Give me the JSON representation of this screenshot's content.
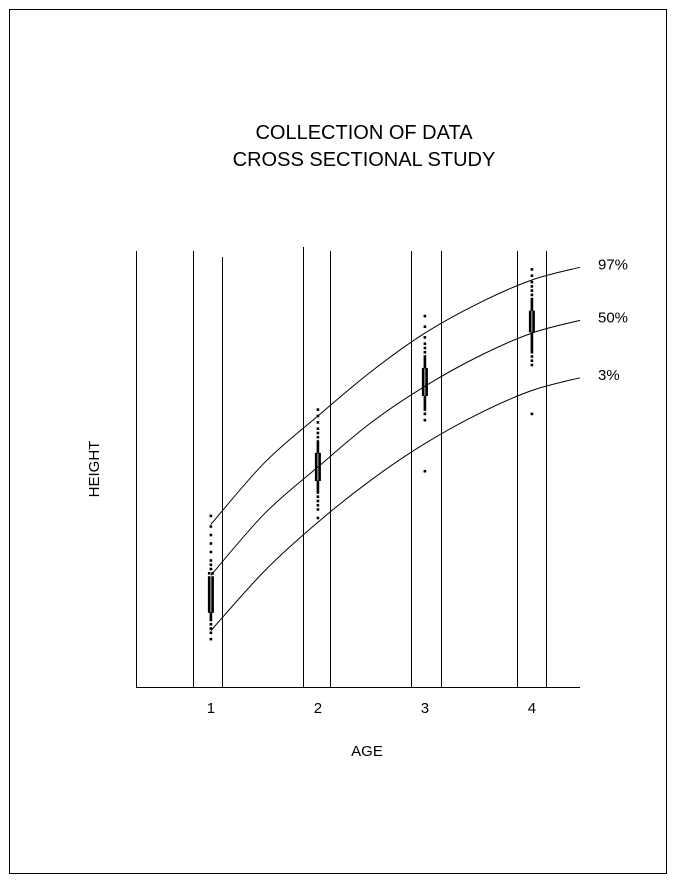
{
  "chart_data": {
    "type": "scatter",
    "title_lines": [
      "COLLECTION OF DATA",
      "CROSS SECTIONAL STUDY"
    ],
    "xlabel": "AGE",
    "ylabel": "HEIGHT",
    "categories": [
      "1",
      "2",
      "3",
      "4"
    ],
    "xlim": [
      0.3,
      4.45
    ],
    "ylim": [
      0,
      100
    ],
    "grid": false,
    "colors": {
      "background": "#ffffff",
      "ink": "#000000"
    },
    "percentile_curves": [
      {
        "name": "97%",
        "points": [
          [
            1,
            38.5
          ],
          [
            1.5,
            53
          ],
          [
            2,
            64
          ],
          [
            2.5,
            74.5
          ],
          [
            3,
            83.5
          ],
          [
            3.5,
            90.5
          ],
          [
            4,
            96
          ],
          [
            4.45,
            99
          ]
        ]
      },
      {
        "name": "50%",
        "points": [
          [
            1,
            26.5
          ],
          [
            1.5,
            41
          ],
          [
            2,
            52
          ],
          [
            2.5,
            62.5
          ],
          [
            3,
            71
          ],
          [
            3.5,
            78
          ],
          [
            4,
            83.5
          ],
          [
            4.45,
            86.5
          ]
        ]
      },
      {
        "name": "3%",
        "points": [
          [
            1,
            13.5
          ],
          [
            1.5,
            27.5
          ],
          [
            2,
            39
          ],
          [
            2.5,
            49
          ],
          [
            3,
            57.5
          ],
          [
            3.5,
            64.5
          ],
          [
            4,
            70
          ],
          [
            4.45,
            73
          ]
        ]
      }
    ],
    "groups": [
      {
        "name": "1",
        "values": [
          40.5,
          38,
          36,
          34,
          32,
          30,
          29,
          28,
          27,
          27,
          26,
          26,
          25.5,
          25.5,
          25,
          25,
          24.5,
          24.5,
          24,
          24,
          23.5,
          23.5,
          23,
          23,
          22.5,
          22.5,
          22,
          22,
          21.5,
          21.5,
          21,
          21,
          20.5,
          20.5,
          20,
          20,
          19.5,
          19.5,
          19,
          19,
          18.5,
          18.5,
          18,
          18,
          17.5,
          17,
          16.5,
          16,
          15,
          14,
          13,
          11.5
        ]
      },
      {
        "name": "2",
        "values": [
          65.5,
          64,
          62.5,
          61,
          60,
          59,
          58,
          57.5,
          57,
          56.5,
          56,
          55.5,
          55,
          55,
          54.5,
          54.5,
          54,
          54,
          53.5,
          53.5,
          53,
          53,
          52.5,
          52.5,
          52,
          52,
          51.5,
          51.5,
          51,
          51,
          50.5,
          50.5,
          50,
          50,
          49.5,
          49.5,
          49,
          49,
          48.5,
          48,
          47.5,
          47,
          46.5,
          46,
          45,
          44,
          43,
          42,
          40
        ]
      },
      {
        "name": "3",
        "values": [
          87.5,
          85,
          82.5,
          81,
          80,
          79,
          78,
          77.5,
          77,
          76.5,
          76,
          75.5,
          75,
          75,
          74.5,
          74.5,
          74,
          74,
          73.5,
          73.5,
          73,
          73,
          72.5,
          72.5,
          72,
          72,
          71.5,
          71.5,
          71,
          71,
          70.5,
          70.5,
          70,
          70,
          69.5,
          69.5,
          69,
          69,
          68.5,
          68,
          67.5,
          67,
          66.5,
          66,
          65.5,
          64.5,
          63,
          51
        ]
      },
      {
        "name": "4",
        "values": [
          98.5,
          97,
          95.5,
          94.5,
          93.5,
          92.5,
          91.5,
          91,
          90.5,
          90,
          89.5,
          89,
          88.5,
          88.5,
          88,
          88,
          87.5,
          87.5,
          87,
          87,
          86.5,
          86.5,
          86,
          86,
          85.5,
          85.5,
          85,
          85,
          84.5,
          84.5,
          84,
          84,
          83.5,
          83,
          82.5,
          82,
          81.5,
          81,
          80.5,
          80,
          79.5,
          79,
          78,
          77,
          76,
          64.5
        ]
      }
    ]
  }
}
